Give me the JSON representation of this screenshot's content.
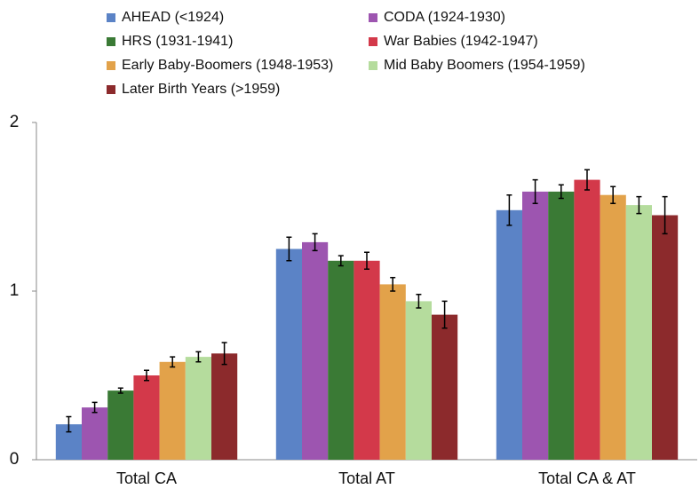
{
  "chart_data": {
    "type": "bar",
    "categories": [
      "Total CA",
      "Total AT",
      "Total CA & AT"
    ],
    "series": [
      {
        "name": "AHEAD (<1924)",
        "color": "#5b83c6",
        "values": [
          0.21,
          1.25,
          1.48
        ],
        "errors": [
          0.045,
          0.07,
          0.09
        ]
      },
      {
        "name": "CODA (1924-1930)",
        "color": "#9d55b0",
        "values": [
          0.31,
          1.29,
          1.59
        ],
        "errors": [
          0.03,
          0.05,
          0.07
        ]
      },
      {
        "name": "HRS (1931-1941)",
        "color": "#3a7a35",
        "values": [
          0.41,
          1.18,
          1.59
        ],
        "errors": [
          0.015,
          0.03,
          0.04
        ]
      },
      {
        "name": "War Babies (1942-1947)",
        "color": "#d3394a",
        "values": [
          0.5,
          1.18,
          1.66
        ],
        "errors": [
          0.03,
          0.05,
          0.06
        ]
      },
      {
        "name": "Early Baby-Boomers (1948-1953)",
        "color": "#e2a24a",
        "values": [
          0.58,
          1.04,
          1.57
        ],
        "errors": [
          0.03,
          0.04,
          0.05
        ]
      },
      {
        "name": "Mid Baby Boomers (1954-1959)",
        "color": "#b5dc9d",
        "values": [
          0.61,
          0.94,
          1.51
        ],
        "errors": [
          0.03,
          0.04,
          0.05
        ]
      },
      {
        "name": "Later Birth Years (>1959)",
        "color": "#8c2a2c",
        "values": [
          0.63,
          0.86,
          1.45
        ],
        "errors": [
          0.065,
          0.08,
          0.11
        ]
      }
    ],
    "ylim": [
      0,
      2
    ],
    "yticks": [
      0,
      1,
      2
    ],
    "grid": false,
    "legend": "top"
  }
}
